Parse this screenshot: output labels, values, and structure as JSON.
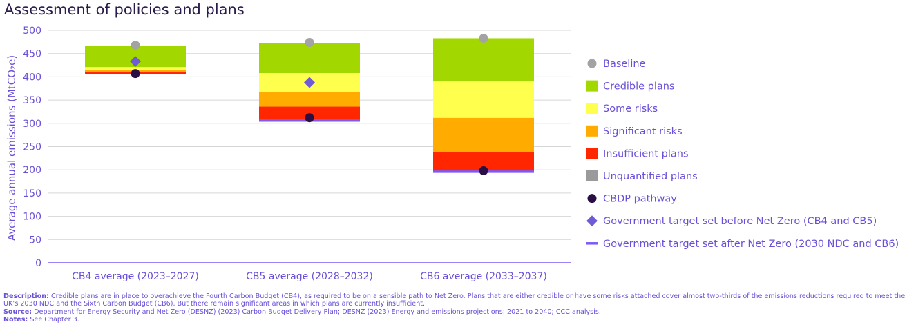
{
  "title": "Assessment of policies and plans",
  "colors": {
    "baseline": "#a3a3a3",
    "credible": "#a2d800",
    "some_risks": "#ffff4d",
    "significant_risks": "#ffab00",
    "insufficient": "#ff2600",
    "unquantified": "#9a9a9a",
    "cbdp": "#2a0f45",
    "target_before": "#6f5bd6",
    "target_after": "#7a5af8",
    "text": "#6a4fd8",
    "grid": "#d6d6d6"
  },
  "chart_data": {
    "type": "bar",
    "title": "Assessment of policies and plans",
    "xlabel": "",
    "ylabel": "Average annual emissions (MtCO₂e)",
    "ylim": [
      0,
      500
    ],
    "yticks": [
      0,
      50,
      100,
      150,
      200,
      250,
      300,
      350,
      400,
      450,
      500
    ],
    "grid": true,
    "legend_position": "right",
    "categories": [
      "CB4 average (2023–2027)",
      "CB5 average (2028–2032)",
      "CB6 average (2033–2037)"
    ],
    "stack_series": [
      {
        "name": "Unquantified plans",
        "key": "unquantified",
        "ranges": [
          [
            406,
            406
          ],
          [
            305,
            305
          ],
          [
            195,
            195
          ]
        ]
      },
      {
        "name": "Insufficient plans",
        "key": "insufficient",
        "ranges": [
          [
            406,
            410
          ],
          [
            305,
            336
          ],
          [
            195,
            238
          ]
        ]
      },
      {
        "name": "Significant risks",
        "key": "significant_risks",
        "ranges": [
          [
            410,
            414
          ],
          [
            336,
            368
          ],
          [
            238,
            312
          ]
        ]
      },
      {
        "name": "Some risks",
        "key": "some_risks",
        "ranges": [
          [
            414,
            421
          ],
          [
            368,
            408
          ],
          [
            312,
            390
          ]
        ]
      },
      {
        "name": "Credible plans",
        "key": "credible",
        "ranges": [
          [
            421,
            467
          ],
          [
            408,
            473
          ],
          [
            390,
            483
          ]
        ]
      }
    ],
    "baseline": [
      468,
      474,
      483
    ],
    "cbdp_pathway": [
      407,
      312,
      198
    ],
    "target_before_net_zero": [
      433,
      388,
      null
    ],
    "target_after_net_zero": [
      null,
      306,
      196
    ],
    "legend": [
      {
        "label": "Baseline",
        "key": "baseline",
        "marker": "circle"
      },
      {
        "label": "Credible plans",
        "key": "credible",
        "marker": "square"
      },
      {
        "label": "Some risks",
        "key": "some_risks",
        "marker": "square"
      },
      {
        "label": "Significant risks",
        "key": "significant_risks",
        "marker": "square"
      },
      {
        "label": "Insufficient plans",
        "key": "insufficient",
        "marker": "square"
      },
      {
        "label": "Unquantified plans",
        "key": "unquantified",
        "marker": "square"
      },
      {
        "label": "CBDP pathway",
        "key": "cbdp",
        "marker": "circle"
      },
      {
        "label": "Government target set before Net Zero (CB4 and CB5)",
        "key": "target_before",
        "marker": "diamond"
      },
      {
        "label": "Government target set after Net Zero (2030 NDC and CB6)",
        "key": "target_after",
        "marker": "line"
      }
    ]
  },
  "notes": {
    "description_label": "Description:",
    "description_text": "Credible plans are in place to overachieve the Fourth Carbon Budget (CB4), as required to be on a sensible path to Net Zero. Plans that are either credible or have some risks attached cover almost two-thirds of the emissions reductions required to meet the UK’s 2030 NDC and the Sixth Carbon Budget (CB6). But there remain significant areas in which plans are currently insufficient.",
    "source_label": "Source:",
    "source_text": "Department for Energy Security and Net Zero (DESNZ) (2023) Carbon Budget Delivery Plan; DESNZ (2023) Energy and emissions projections: 2021 to 2040; CCC analysis.",
    "notes_label": "Notes:",
    "notes_text": "See Chapter 3."
  }
}
